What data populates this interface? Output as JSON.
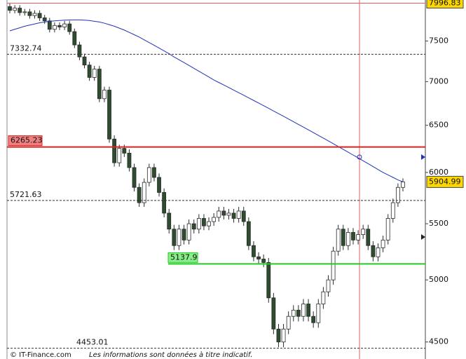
{
  "chart_data": {
    "type": "candlestick",
    "log_scale": true,
    "ylim": [
      4372,
      8040
    ],
    "yticks": [
      4500,
      5000,
      5500,
      6000,
      6500,
      7000,
      7500
    ],
    "up_color": "#ffffff",
    "down_color": "#2e4d2e",
    "wick_color": "#2a2a2a",
    "open": [
      7950,
      7900,
      7930,
      7870,
      7880,
      7830,
      7860,
      7800,
      7760,
      7650,
      7700,
      7680,
      7720,
      7620,
      7450,
      7300,
      7200,
      7050,
      7150,
      6800,
      6900,
      6350,
      6100,
      6250,
      6200,
      6050,
      5850,
      5700,
      5900,
      6050,
      5950,
      5800,
      5600,
      5450,
      5300,
      5450,
      5350,
      5500,
      5450,
      5550,
      5480,
      5520,
      5560,
      5620,
      5580,
      5600,
      5550,
      5620,
      5520,
      5300,
      5200,
      5180,
      5150,
      4850,
      4600,
      4500,
      4600,
      4700,
      4750,
      4700,
      4800,
      4700,
      4650,
      4800,
      4900,
      5000,
      5250,
      5450,
      5300,
      5420,
      5350,
      5400,
      5450,
      5300,
      5200,
      5280,
      5350,
      5550,
      5700,
      5850
    ],
    "high": [
      7990,
      7970,
      7970,
      7920,
      7920,
      7900,
      7900,
      7840,
      7800,
      7740,
      7740,
      7760,
      7760,
      7660,
      7490,
      7340,
      7240,
      7190,
      7190,
      6940,
      6940,
      6390,
      6290,
      6290,
      6240,
      6090,
      5890,
      5940,
      6090,
      6090,
      5990,
      5840,
      5640,
      5490,
      5490,
      5490,
      5540,
      5540,
      5590,
      5590,
      5560,
      5600,
      5660,
      5660,
      5640,
      5640,
      5660,
      5660,
      5560,
      5340,
      5240,
      5220,
      5190,
      4890,
      4640,
      4640,
      4740,
      4790,
      4790,
      4840,
      4840,
      4740,
      4840,
      4940,
      5040,
      5290,
      5490,
      5490,
      5460,
      5460,
      5440,
      5490,
      5490,
      5340,
      5320,
      5390,
      5590,
      5740,
      5890,
      5940
    ],
    "low": [
      7860,
      7860,
      7830,
      7830,
      7790,
      7790,
      7760,
      7720,
      7610,
      7610,
      7640,
      7640,
      7580,
      7410,
      7260,
      7160,
      7010,
      7010,
      6760,
      6760,
      6310,
      6060,
      6060,
      6160,
      6010,
      5810,
      5660,
      5660,
      5860,
      5910,
      5760,
      5560,
      5410,
      5260,
      5260,
      5310,
      5310,
      5410,
      5410,
      5440,
      5440,
      5480,
      5520,
      5540,
      5540,
      5510,
      5510,
      5480,
      5260,
      5160,
      5140,
      5110,
      4810,
      4560,
      4460,
      4460,
      4560,
      4660,
      4660,
      4660,
      4660,
      4610,
      4610,
      4760,
      4860,
      4960,
      5210,
      5260,
      5260,
      5310,
      5310,
      5360,
      5260,
      5160,
      5160,
      5240,
      5310,
      5510,
      5660,
      5810
    ],
    "close": [
      7900,
      7930,
      7870,
      7880,
      7830,
      7860,
      7800,
      7760,
      7650,
      7700,
      7680,
      7720,
      7620,
      7450,
      7300,
      7200,
      7050,
      7150,
      6800,
      6900,
      6350,
      6100,
      6250,
      6200,
      6050,
      5850,
      5700,
      5900,
      6050,
      5950,
      5800,
      5600,
      5450,
      5300,
      5450,
      5350,
      5500,
      5450,
      5550,
      5480,
      5520,
      5560,
      5620,
      5580,
      5600,
      5550,
      5620,
      5520,
      5300,
      5200,
      5180,
      5150,
      4850,
      4600,
      4500,
      4600,
      4700,
      4750,
      4700,
      4800,
      4700,
      4650,
      4800,
      4900,
      5000,
      5250,
      5450,
      5300,
      5420,
      5350,
      5400,
      5450,
      5300,
      5200,
      5280,
      5350,
      5550,
      5700,
      5850,
      5904.99
    ],
    "ma": {
      "color": "#2233bb",
      "values": [
        7630,
        7650,
        7670,
        7690,
        7705,
        7720,
        7735,
        7745,
        7755,
        7760,
        7765,
        7770,
        7772,
        7773,
        7773,
        7770,
        7765,
        7755,
        7745,
        7730,
        7710,
        7690,
        7665,
        7640,
        7610,
        7580,
        7550,
        7515,
        7480,
        7445,
        7410,
        7375,
        7340,
        7300,
        7265,
        7230,
        7195,
        7160,
        7125,
        7090,
        7055,
        7020,
        6990,
        6960,
        6930,
        6900,
        6870,
        6840,
        6810,
        6780,
        6750,
        6720,
        6690,
        6660,
        6630,
        6600,
        6570,
        6540,
        6510,
        6480,
        6450,
        6420,
        6390,
        6360,
        6330,
        6300,
        6270,
        6240,
        6210,
        6180,
        6150,
        6120,
        6090,
        6060,
        6030,
        6000,
        5975,
        5950,
        5925,
        5905
      ]
    },
    "last_bg": "#ffd700",
    "levels": [
      {
        "value": 7996.83,
        "color": "#e06060",
        "style": "thin",
        "label_bg": "#ffd700"
      },
      {
        "value": 7332.74,
        "color": "#333333",
        "style": "dashed"
      },
      {
        "value": 6265.23,
        "color": "#dd2222",
        "style": "thick",
        "label_bg": "#f08080"
      },
      {
        "value": 5721.63,
        "color": "#333333",
        "style": "dashed"
      },
      {
        "value": 5137.9,
        "color": "#22cc22",
        "style": "thick",
        "label_bg": "#88ee88"
      },
      {
        "value": 4453.01,
        "color": "#333333",
        "style": "dashed"
      }
    ]
  },
  "footer": {
    "copyright": "© IT-Finance.com",
    "disclaimer": "Les informations sont données à titre indicatif."
  }
}
